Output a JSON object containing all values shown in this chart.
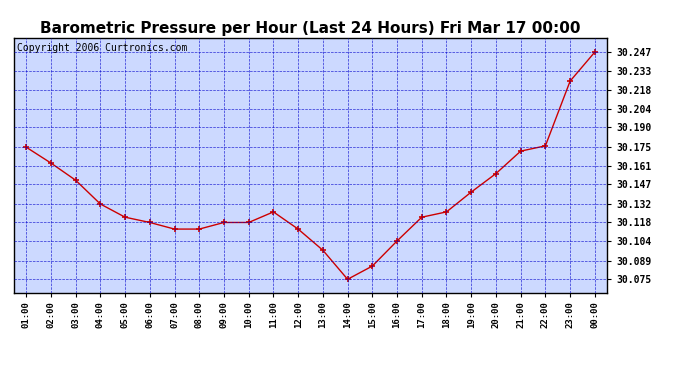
{
  "title": "Barometric Pressure per Hour (Last 24 Hours) Fri Mar 17 00:00",
  "copyright": "Copyright 2006 Curtronics.com",
  "hours": [
    "01:00",
    "02:00",
    "03:00",
    "04:00",
    "05:00",
    "06:00",
    "07:00",
    "08:00",
    "09:00",
    "10:00",
    "11:00",
    "12:00",
    "13:00",
    "14:00",
    "15:00",
    "16:00",
    "17:00",
    "18:00",
    "19:00",
    "20:00",
    "21:00",
    "22:00",
    "23:00",
    "00:00"
  ],
  "values": [
    30.175,
    30.163,
    30.15,
    30.132,
    30.122,
    30.118,
    30.113,
    30.113,
    30.118,
    30.118,
    30.126,
    30.113,
    30.097,
    30.075,
    30.085,
    30.104,
    30.122,
    30.126,
    30.141,
    30.155,
    30.172,
    30.176,
    30.225,
    30.247
  ],
  "yticks": [
    30.075,
    30.089,
    30.104,
    30.118,
    30.132,
    30.147,
    30.161,
    30.175,
    30.19,
    30.204,
    30.218,
    30.233,
    30.247
  ],
  "ymin": 30.065,
  "ymax": 30.258,
  "line_color": "#cc0000",
  "marker_color": "#cc0000",
  "bg_color": "#ccd9ff",
  "grid_color": "#0000cc",
  "title_fontsize": 11,
  "copyright_fontsize": 7
}
